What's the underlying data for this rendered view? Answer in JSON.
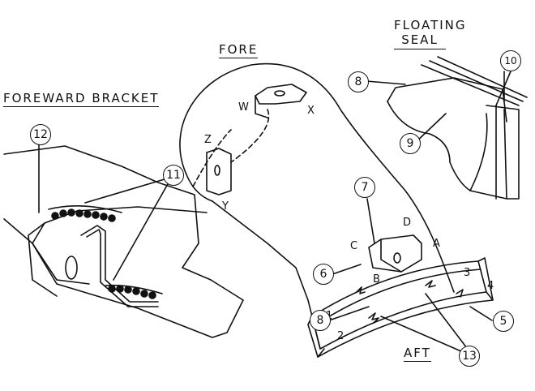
{
  "titles": {
    "foreward_bracket": "FOREWARD  BRACKET",
    "fore": "FORE",
    "floating_seal": "FLOATING\nSEAL",
    "aft": "AFT"
  },
  "points": {
    "w": "W",
    "x": "X",
    "z": "Z",
    "y": "Y",
    "a": "A",
    "b": "B",
    "c": "C",
    "d": "D"
  },
  "segments": {
    "s1": "1",
    "s2": "2",
    "s3": "3",
    "s4": "4"
  },
  "callouts": {
    "c5": "5",
    "c6": "6",
    "c7": "7",
    "c8_top": "8",
    "c8_bottom": "8",
    "c9": "9",
    "c10": "10",
    "c11": "11",
    "c12": "12",
    "c13": "13"
  }
}
